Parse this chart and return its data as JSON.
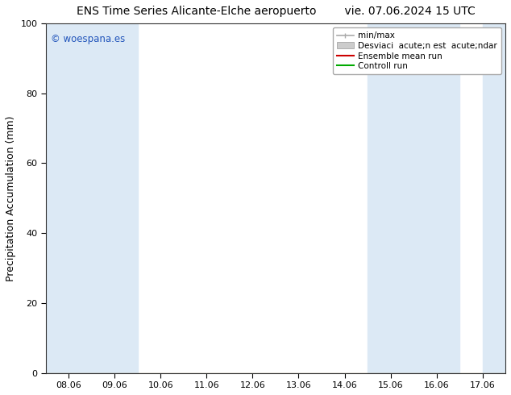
{
  "title_left": "ENS Time Series Alicante-Elche aeropuerto",
  "title_right": "vie. 07.06.2024 15 UTC",
  "ylabel": "Precipitation Accumulation (mm)",
  "ylim": [
    0,
    100
  ],
  "yticks": [
    0,
    20,
    40,
    60,
    80,
    100
  ],
  "x_labels": [
    "08.06",
    "09.06",
    "10.06",
    "11.06",
    "12.06",
    "13.06",
    "14.06",
    "15.06",
    "16.06",
    "17.06"
  ],
  "x_values": [
    0,
    1,
    2,
    3,
    4,
    5,
    6,
    7,
    8,
    9
  ],
  "xlim": [
    -0.5,
    9.5
  ],
  "shaded_bands": [
    {
      "x_start": -0.5,
      "x_end": 0.5,
      "color": "#dce9f5"
    },
    {
      "x_start": 0.5,
      "x_end": 1.5,
      "color": "#dce9f5"
    },
    {
      "x_start": 6.5,
      "x_end": 7.5,
      "color": "#dce9f5"
    },
    {
      "x_start": 7.5,
      "x_end": 8.5,
      "color": "#dce9f5"
    },
    {
      "x_start": 9.0,
      "x_end": 9.5,
      "color": "#dce9f5"
    }
  ],
  "watermark_text": "© woespana.es",
  "watermark_color": "#2255bb",
  "legend_minmax_color": "#aaaaaa",
  "legend_std_color": "#cccccc",
  "legend_ens_color": "#cc0000",
  "legend_ctrl_color": "#00aa00",
  "legend_label_minmax": "min/max",
  "legend_label_std": "Desviaci  acute;n est  acute;ndar",
  "legend_label_ens": "Ensemble mean run",
  "legend_label_ctrl": "Controll run",
  "background_color": "#ffffff",
  "plot_bg_color": "#ffffff",
  "title_fontsize": 10,
  "tick_fontsize": 8,
  "ylabel_fontsize": 9,
  "legend_fontsize": 7.5
}
